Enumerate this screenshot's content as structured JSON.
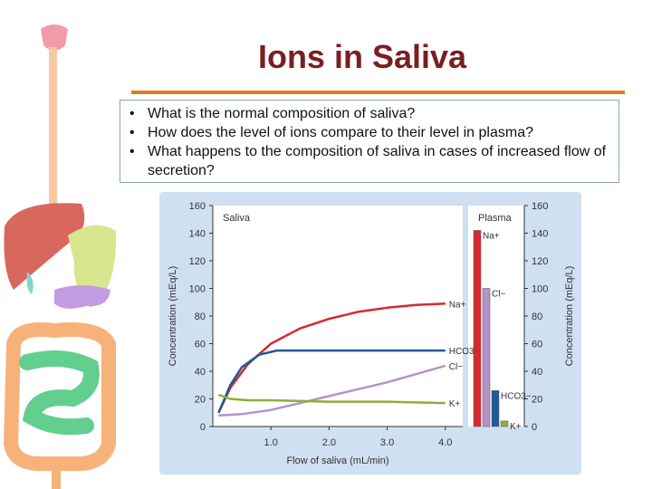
{
  "slide": {
    "title": "Ions in Saliva",
    "bullets": [
      "What is the normal composition of saliva?",
      "How does the level of ions compare to their level in plasma?",
      "What happens to the composition of saliva in cases of increased flow of secretion?"
    ]
  },
  "chart_data": [
    {
      "type": "line",
      "title": "Saliva",
      "xlabel": "Flow of saliva (mL/min)",
      "ylabel": "Concentration (mEq/L)",
      "xlim": [
        0,
        4.3
      ],
      "ylim": [
        0,
        160
      ],
      "xticks": [
        "1.0",
        "2.0",
        "3.0",
        "4.0"
      ],
      "yticks": [
        "0",
        "20",
        "40",
        "60",
        "80",
        "100",
        "120",
        "140",
        "160"
      ],
      "series": [
        {
          "name": "Na+",
          "color": "#d9272e",
          "x": [
            0.1,
            0.3,
            0.6,
            1.0,
            1.5,
            2.0,
            2.5,
            3.0,
            3.5,
            4.0
          ],
          "y": [
            10,
            28,
            45,
            60,
            71,
            78,
            83,
            86,
            88,
            89
          ]
        },
        {
          "name": "HCO3−",
          "color": "#1f5a99",
          "x": [
            0.1,
            0.3,
            0.5,
            0.8,
            1.1,
            1.5,
            2.0,
            3.0,
            4.0
          ],
          "y": [
            10,
            30,
            43,
            52,
            55,
            55,
            55,
            55,
            55
          ]
        },
        {
          "name": "Cl−",
          "color": "#b493c8",
          "x": [
            0.1,
            0.5,
            1.0,
            1.5,
            2.0,
            2.5,
            3.0,
            3.5,
            4.0
          ],
          "y": [
            8,
            9,
            12,
            17,
            22,
            27,
            32,
            38,
            44
          ]
        },
        {
          "name": "K+",
          "color": "#8fae3b",
          "x": [
            0.1,
            0.3,
            0.6,
            1.0,
            2.0,
            3.0,
            4.0
          ],
          "y": [
            23,
            20,
            19,
            19,
            18,
            18,
            17
          ]
        }
      ]
    },
    {
      "type": "bar",
      "title": "Plasma",
      "ylabel": "Concentration (mEq/L)",
      "ylim": [
        0,
        160
      ],
      "yticks": [
        "0",
        "20",
        "40",
        "60",
        "80",
        "100",
        "120",
        "140",
        "160"
      ],
      "categories": [
        "Na+",
        "Cl−",
        "HCO3−",
        "K+"
      ],
      "values": [
        142,
        100,
        26,
        4
      ],
      "colors": [
        "#d9272e",
        "#b493c8",
        "#1f5a99",
        "#8fae3b"
      ]
    }
  ]
}
